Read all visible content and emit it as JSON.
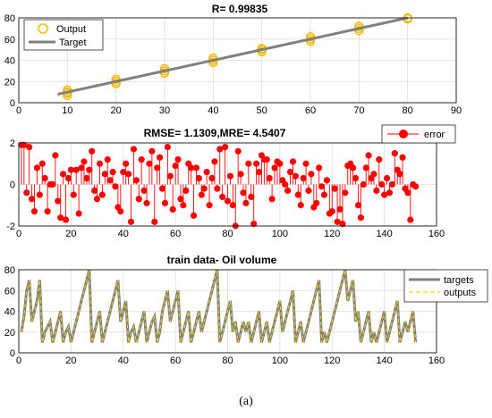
{
  "caption": "(a)",
  "chart_data": [
    {
      "type": "scatter",
      "title": "R= 0.99835",
      "xlabel": "",
      "ylabel": "",
      "xlim": [
        0,
        90
      ],
      "ylim": [
        0,
        80
      ],
      "xticks": [
        "0",
        "10",
        "20",
        "30",
        "40",
        "50",
        "60",
        "70",
        "80",
        "90"
      ],
      "yticks": [
        "0",
        "20",
        "40",
        "60",
        "80"
      ],
      "grid": true,
      "legend_position": "top-left",
      "colors": {
        "output": "#f5b800",
        "target": "#808080"
      },
      "series": [
        {
          "name": "Output",
          "kind": "markers",
          "points": [
            [
              10,
              7
            ],
            [
              10,
              9
            ],
            [
              10,
              10
            ],
            [
              10,
              12
            ],
            [
              20,
              18
            ],
            [
              20,
              20
            ],
            [
              20,
              22
            ],
            [
              30,
              28
            ],
            [
              30,
              30
            ],
            [
              30,
              32
            ],
            [
              40,
              38
            ],
            [
              40,
              40
            ],
            [
              40,
              42
            ],
            [
              50,
              48
            ],
            [
              50,
              50
            ],
            [
              50,
              51
            ],
            [
              60,
              58
            ],
            [
              60,
              60
            ],
            [
              60,
              62
            ],
            [
              70,
              68
            ],
            [
              70,
              70
            ],
            [
              70,
              72
            ],
            [
              80,
              79
            ],
            [
              80,
              80
            ]
          ]
        },
        {
          "name": "Target",
          "kind": "line",
          "points": [
            [
              8,
              8
            ],
            [
              80,
              80
            ]
          ]
        }
      ]
    },
    {
      "type": "line",
      "title": "RMSE= 1.1309,MRE= 4.5407",
      "xlabel": "",
      "ylabel": "",
      "xlim": [
        0,
        160
      ],
      "ylim": [
        -2,
        2
      ],
      "xticks": [
        "0",
        "20",
        "40",
        "60",
        "80",
        "100",
        "120",
        "140",
        "160"
      ],
      "yticks": [
        "-2",
        "0",
        "2"
      ],
      "grid": true,
      "legend_position": "top-right",
      "colors": {
        "error": "#ff0000"
      },
      "series": [
        {
          "name": "error",
          "kind": "stem",
          "values": [
            1.9,
            1.9,
            -0.4,
            1.8,
            -0.7,
            -1.3,
            0.8,
            -0.5,
            1.0,
            0.3,
            -1.3,
            0.0,
            0.0,
            1.4,
            -0.8,
            -1.6,
            0.5,
            -1.7,
            0.3,
            0.7,
            -0.5,
            0.7,
            -1.4,
            0.8,
            1.1,
            0.3,
            0.7,
            1.6,
            -0.3,
            -0.7,
            1.0,
            -0.5,
            0.5,
            1.2,
            0.2,
            0.6,
            -0.1,
            -1.1,
            -1.3,
            0.6,
            1.0,
            0.5,
            -1.8,
            1.7,
            0.2,
            -0.7,
            1.2,
            -0.3,
            -0.9,
            1.0,
            1.6,
            -1.8,
            0.8,
            1.3,
            -0.2,
            -0.9,
            1.8,
            0.4,
            -1.2,
            0.9,
            1.2,
            -0.7,
            -1.0,
            -0.3,
            1.0,
            0.8,
            -1.5,
            0.8,
            0.3,
            -0.5,
            -0.2,
            0.6,
            -1.0,
            0.3,
            1.1,
            -0.2,
            1.7,
            -0.6,
            1.8,
            -0.8,
            0.4,
            -1.0,
            -2.0,
            1.6,
            0.5,
            -0.4,
            -0.9,
            1.0,
            -0.6,
            -1.9,
            1.0,
            0.6,
            1.4,
            1.2,
            1.2,
            0.3,
            -0.7,
            0.8,
            1.1,
            1.0,
            0.2,
            0.0,
            -0.3,
            0.6,
            1.1,
            0.4,
            -0.5,
            -1.0,
            0.3,
            1.0,
            -0.3,
            0.5,
            -1.1,
            -0.9,
            0.8,
            -0.1,
            -0.5,
            0.2,
            -1.4,
            -1.3,
            -0.2,
            -1.8,
            -1.2,
            -1.9,
            -0.4,
            0.9,
            1.0,
            0.8,
            0.3,
            -1.0,
            -1.6,
            0.0,
            0.8,
            1.4,
            0.3,
            0.5,
            -0.3,
            1.2,
            0.0,
            -0.5,
            0.3,
            -0.4,
            0.0,
            1.5,
            0.7,
            0.5,
            1.3,
            -0.2,
            -0.4,
            -1.7,
            0.0,
            -0.1
          ]
        }
      ]
    },
    {
      "type": "line",
      "title": "train data- Oil volume",
      "xlabel": "",
      "ylabel": "",
      "xlim": [
        0,
        160
      ],
      "ylim": [
        0,
        80
      ],
      "xticks": [
        "0",
        "20",
        "40",
        "60",
        "80",
        "100",
        "120",
        "140",
        "160"
      ],
      "yticks": [
        "0",
        "20",
        "40",
        "60",
        "80"
      ],
      "grid": true,
      "legend_position": "top-right",
      "colors": {
        "targets": "#808080",
        "outputs": "#f5d800"
      },
      "series": [
        {
          "name": "targets",
          "style": "solid",
          "values": [
            20,
            35,
            60,
            70,
            30,
            40,
            50,
            70,
            10,
            20,
            25,
            30,
            10,
            20,
            30,
            40,
            10,
            20,
            25,
            10,
            20,
            30,
            40,
            50,
            60,
            70,
            80,
            10,
            20,
            30,
            40,
            10,
            20,
            30,
            40,
            50,
            60,
            70,
            30,
            40,
            50,
            10,
            20,
            25,
            10,
            20,
            30,
            40,
            10,
            20,
            30,
            35,
            10,
            20,
            40,
            50,
            60,
            30,
            40,
            50,
            60,
            10,
            20,
            30,
            40,
            10,
            20,
            30,
            40,
            20,
            30,
            40,
            50,
            60,
            70,
            80,
            10,
            20,
            30,
            40,
            50,
            20,
            30,
            10,
            20,
            30,
            20,
            30,
            10,
            20,
            30,
            40,
            10,
            20,
            30,
            10,
            20,
            30,
            40,
            50,
            20,
            30,
            40,
            50,
            60,
            10,
            20,
            30,
            10,
            20,
            30,
            40,
            50,
            60,
            70,
            10,
            20,
            10,
            20,
            30,
            40,
            50,
            60,
            70,
            80,
            50,
            60,
            70,
            30,
            40,
            10,
            20,
            30,
            40,
            10,
            20,
            10,
            20,
            30,
            40,
            10,
            20,
            30,
            40,
            50,
            10,
            20,
            30,
            20,
            30,
            40,
            10
          ]
        },
        {
          "name": "outputs",
          "style": "dashed",
          "values": [
            20,
            35,
            60,
            70,
            30,
            40,
            50,
            70,
            10,
            20,
            25,
            30,
            10,
            20,
            30,
            40,
            10,
            20,
            25,
            10,
            20,
            30,
            40,
            50,
            60,
            70,
            80,
            10,
            20,
            30,
            40,
            10,
            20,
            30,
            40,
            50,
            60,
            70,
            30,
            40,
            50,
            10,
            20,
            25,
            10,
            20,
            30,
            40,
            10,
            20,
            30,
            35,
            10,
            20,
            40,
            50,
            60,
            30,
            40,
            50,
            60,
            10,
            20,
            30,
            40,
            10,
            20,
            30,
            40,
            20,
            30,
            40,
            50,
            60,
            70,
            80,
            10,
            20,
            30,
            40,
            50,
            20,
            30,
            10,
            20,
            30,
            20,
            30,
            10,
            20,
            30,
            40,
            10,
            20,
            30,
            10,
            20,
            30,
            40,
            50,
            20,
            30,
            40,
            50,
            60,
            10,
            20,
            30,
            10,
            20,
            30,
            40,
            50,
            60,
            70,
            10,
            20,
            10,
            20,
            30,
            40,
            50,
            60,
            70,
            80,
            50,
            60,
            70,
            30,
            40,
            10,
            20,
            30,
            40,
            10,
            20,
            10,
            20,
            30,
            40,
            10,
            20,
            30,
            40,
            50,
            10,
            20,
            30,
            20,
            30,
            40,
            10
          ]
        }
      ]
    }
  ]
}
